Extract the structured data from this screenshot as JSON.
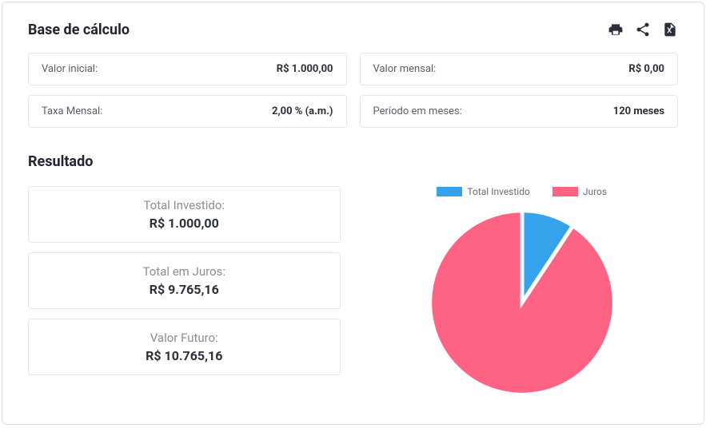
{
  "sections": {
    "base_title": "Base de cálculo",
    "result_title": "Resultado"
  },
  "base": {
    "valor_inicial": {
      "label": "Valor inicial:",
      "value": "R$ 1.000,00"
    },
    "valor_mensal": {
      "label": "Valor mensal:",
      "value": "R$ 0,00"
    },
    "taxa_mensal": {
      "label": "Taxa Mensal:",
      "value": "2,00 % (a.m.)"
    },
    "periodo": {
      "label": "Período em meses:",
      "value": "120 meses"
    }
  },
  "result": {
    "total_investido": {
      "label": "Total Investido:",
      "value": "R$ 1.000,00"
    },
    "total_juros": {
      "label": "Total em Juros:",
      "value": "R$ 9.765,16"
    },
    "valor_futuro": {
      "label": "Valor Futuro:",
      "value": "R$ 10.765,16"
    }
  },
  "chart": {
    "type": "pie",
    "background_color": "#ffffff",
    "slice_border_color": "#ffffff",
    "slice_border_width": 2,
    "legend_fontsize": 12,
    "legend_color": "#6a6d78",
    "series": [
      {
        "key": "total_investido",
        "label": "Total Investido",
        "value": 1000.0,
        "color": "#36a2eb"
      },
      {
        "key": "juros",
        "label": "Juros",
        "value": 9765.16,
        "color": "#ff6384"
      }
    ]
  },
  "icons": {
    "print": "print-icon",
    "share": "share-icon",
    "export": "excel-icon"
  }
}
